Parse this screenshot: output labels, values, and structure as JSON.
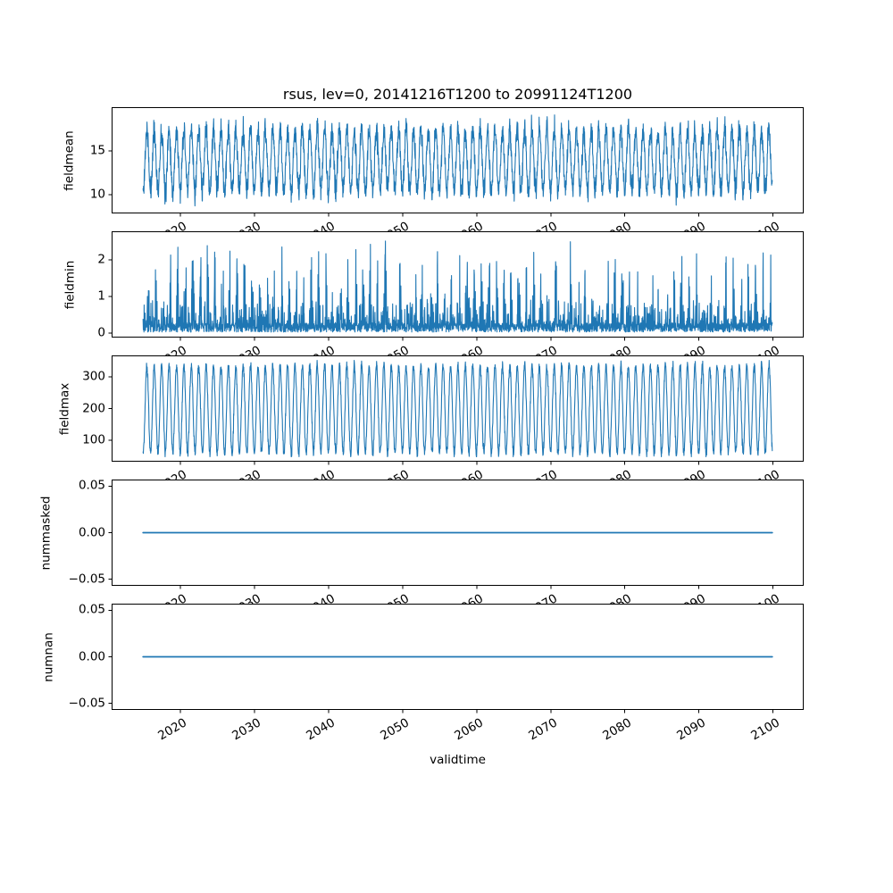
{
  "figure": {
    "background_color": "#ffffff",
    "text_color": "#000000",
    "line_color": "#1f77b4"
  },
  "chart_data": {
    "type": "line",
    "title": "rsus, lev=0, 20141216T1200 to 20991124T1200",
    "xlabel": "validtime",
    "legend": "none",
    "grid": false,
    "x_start_year": 2014.958,
    "x_end_year": 2099.9,
    "xlim": [
      2010.71,
      2104.15
    ],
    "xticks": [
      {
        "value": 2020,
        "label": "2020"
      },
      {
        "value": 2030,
        "label": "2030"
      },
      {
        "value": 2040,
        "label": "2040"
      },
      {
        "value": 2050,
        "label": "2050"
      },
      {
        "value": 2060,
        "label": "2060"
      },
      {
        "value": 2070,
        "label": "2070"
      },
      {
        "value": 2080,
        "label": "2080"
      },
      {
        "value": 2090,
        "label": "2090"
      },
      {
        "value": 2100,
        "label": "2100"
      }
    ],
    "xtick_rotation_deg": 30,
    "subplots": [
      {
        "ylabel": "fieldmean",
        "ylim": [
          7.86,
          20.0
        ],
        "yticks": [
          {
            "value": 15,
            "label": "15"
          },
          {
            "value": 10,
            "label": "10"
          }
        ],
        "pattern": "seasonal",
        "period_years": 1,
        "base": 13.9,
        "amplitude": 3.5,
        "noise": 1.15,
        "phase": 0.22,
        "data_min": 8.4,
        "data_max": 19.45,
        "points_per_year": 36,
        "seed": 11
      },
      {
        "ylabel": "fieldmin",
        "ylim": [
          -0.12,
          2.78
        ],
        "yticks": [
          {
            "value": 2,
            "label": "2"
          },
          {
            "value": 1,
            "label": "1"
          },
          {
            "value": 0,
            "label": "0"
          }
        ],
        "pattern": "spiky",
        "period_years": 1,
        "baseline_low": 0.03,
        "baseline_high": 0.28,
        "spike_amplitude": 2.1,
        "spike_phase": 0.42,
        "data_min": 0.02,
        "data_max": 2.64,
        "points_per_year": 36,
        "seed": 23
      },
      {
        "ylabel": "fieldmax",
        "ylim": [
          32.4,
          367.6
        ],
        "yticks": [
          {
            "value": 300,
            "label": "300"
          },
          {
            "value": 200,
            "label": "200"
          },
          {
            "value": 100,
            "label": "100"
          }
        ],
        "pattern": "seasonal",
        "period_years": 1,
        "base": 197,
        "amplitude": 138,
        "noise": 14,
        "phase": 0.22,
        "data_min": 48,
        "data_max": 352,
        "points_per_year": 36,
        "seed": 37
      },
      {
        "ylabel": "nummasked",
        "ylim": [
          -0.057,
          0.057
        ],
        "yticks": [
          {
            "value": 0.05,
            "label": "0.05"
          },
          {
            "value": 0.0,
            "label": "0.00"
          },
          {
            "value": -0.05,
            "label": "−0.05"
          }
        ],
        "pattern": "constant",
        "value": 0,
        "seed": 41
      },
      {
        "ylabel": "numnan",
        "ylim": [
          -0.057,
          0.057
        ],
        "yticks": [
          {
            "value": 0.05,
            "label": "0.05"
          },
          {
            "value": 0.0,
            "label": "0.00"
          },
          {
            "value": -0.05,
            "label": "−0.05"
          }
        ],
        "pattern": "constant",
        "value": 0,
        "seed": 43
      }
    ]
  }
}
